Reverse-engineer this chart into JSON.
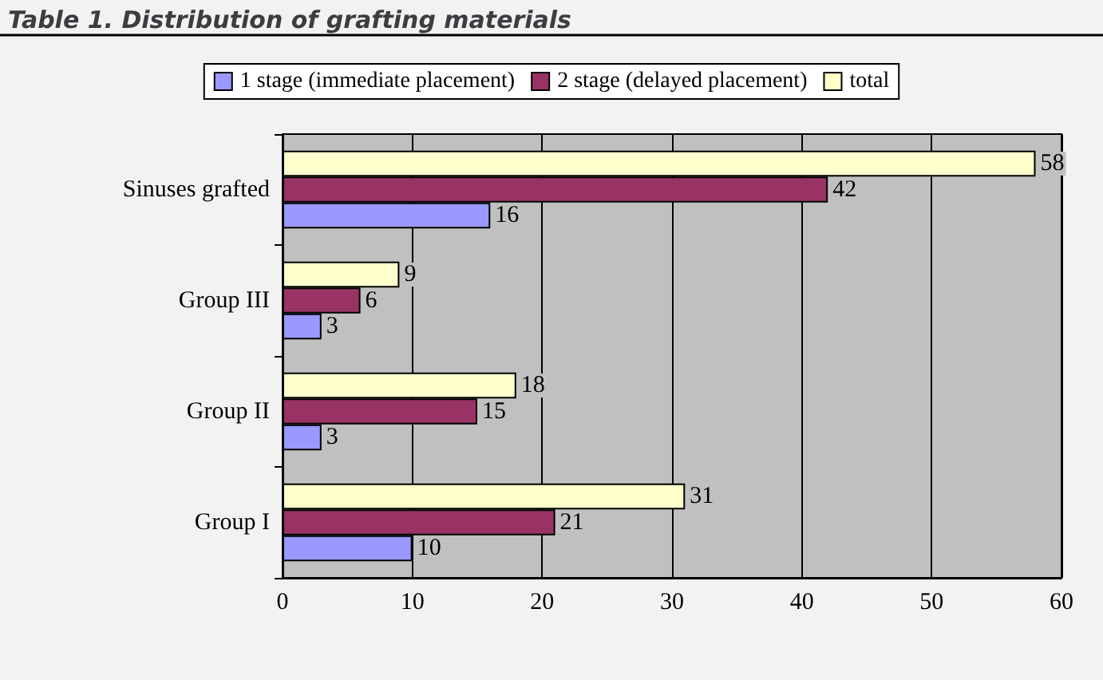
{
  "chart_data": {
    "type": "bar",
    "orientation": "horizontal",
    "title": "Table 1. Distribution of grafting materials",
    "categories": [
      "Sinuses grafted",
      "Group III",
      "Group II",
      "Group I"
    ],
    "series": [
      {
        "name": "1 stage (immediate placement)",
        "color": "#9999ff",
        "values": [
          16,
          3,
          3,
          10
        ]
      },
      {
        "name": "2 stage (delayed placement)",
        "color": "#993366",
        "values": [
          42,
          6,
          15,
          21
        ]
      },
      {
        "name": "total",
        "color": "#ffffcc",
        "values": [
          58,
          9,
          18,
          31
        ]
      }
    ],
    "xlim": [
      0,
      60
    ],
    "xticks": [
      0,
      10,
      20,
      30,
      40,
      50,
      60
    ],
    "grid": "x",
    "legend": "top",
    "data_labels": true
  }
}
